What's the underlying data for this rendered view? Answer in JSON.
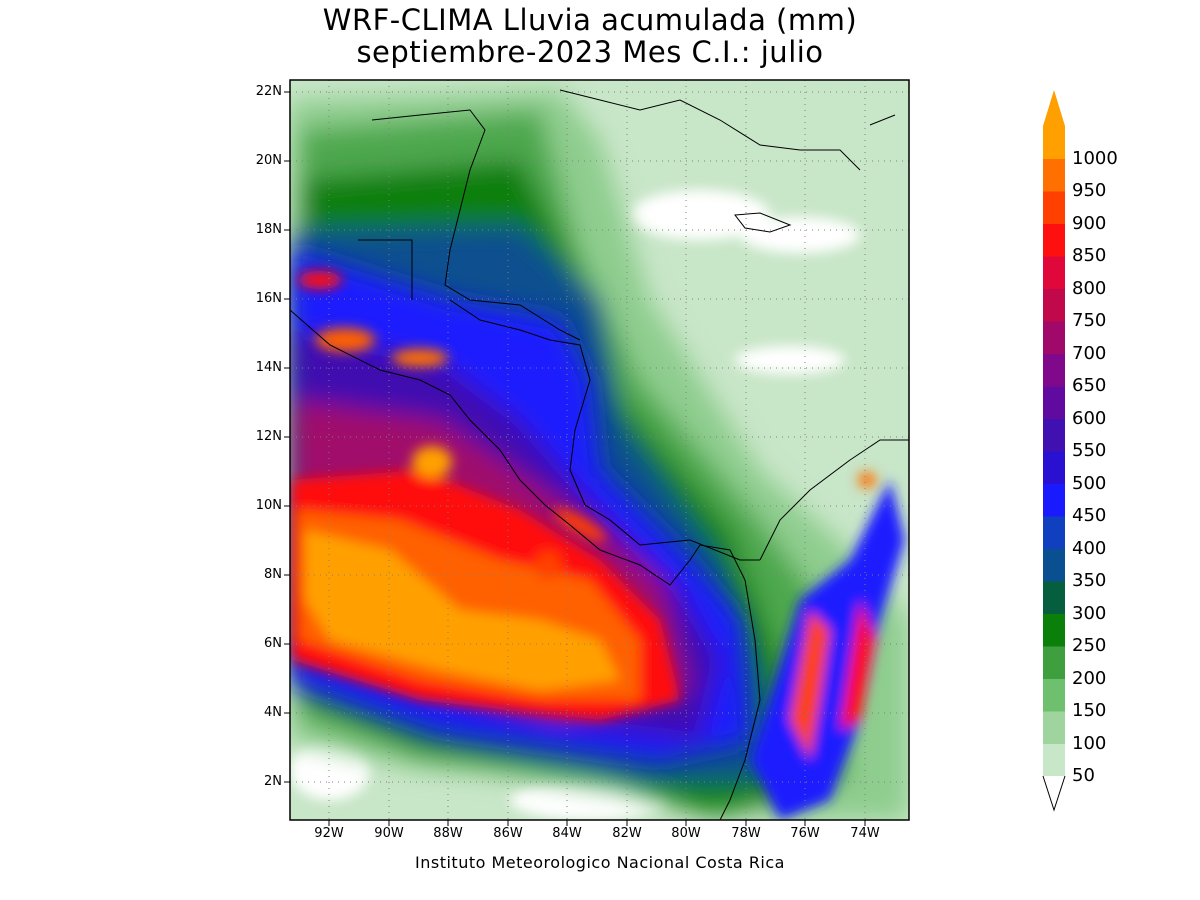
{
  "title": {
    "line1": "WRF-CLIMA Lluvia acumulada (mm)",
    "line2": "septiembre-2023 Mes C.I.: julio"
  },
  "credit": "Instituto Meteorologico Nacional Costa Rica",
  "map": {
    "lon_range": [
      -93.3,
      -72.5
    ],
    "lat_range": [
      1.0,
      22.4
    ],
    "lat_ticks": [
      "2N",
      "4N",
      "6N",
      "8N",
      "10N",
      "12N",
      "14N",
      "16N",
      "18N",
      "20N",
      "22N"
    ],
    "lon_ticks": [
      "92W",
      "90W",
      "88W",
      "86W",
      "84W",
      "82W",
      "80W",
      "78W",
      "76W",
      "74W"
    ],
    "grid": true
  },
  "colorbar": {
    "labels": [
      "50",
      "100",
      "150",
      "200",
      "250",
      "300",
      "350",
      "400",
      "450",
      "500",
      "550",
      "600",
      "650",
      "700",
      "750",
      "800",
      "850",
      "900",
      "950",
      "1000"
    ],
    "colors": [
      "#c8e6c8",
      "#9fd49f",
      "#6ebf6e",
      "#3f9f3f",
      "#0a7f0a",
      "#055f3f",
      "#0a4f8f",
      "#1040c0",
      "#1a1aff",
      "#2a10d0",
      "#4010b0",
      "#600aa0",
      "#80088a",
      "#a0086a",
      "#c0084a",
      "#e0083a",
      "#ff1010",
      "#ff4000",
      "#ff7000",
      "#ffa000"
    ],
    "extend_low_color": "#ffffff",
    "extend_high_color": "#ffa000"
  }
}
